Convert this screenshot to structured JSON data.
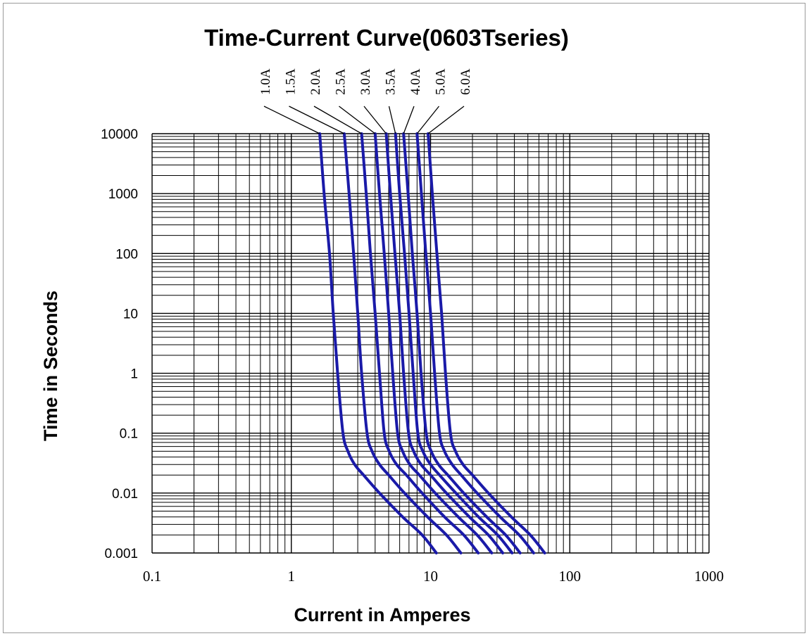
{
  "chart_data": {
    "type": "line",
    "title": "Time-Current Curve(0603Tseries)",
    "xlabel": "Current in Amperes",
    "ylabel": "Time in Seconds",
    "x_scale": "log",
    "y_scale": "log",
    "xlim": [
      0.1,
      1000
    ],
    "ylim": [
      0.001,
      10000
    ],
    "grid": true,
    "x_ticks": [
      "0.1",
      "1",
      "10",
      "100",
      "1000"
    ],
    "y_ticks": [
      "0.001",
      "0.01",
      "0.1",
      "1",
      "10",
      "100",
      "1000",
      "10000"
    ],
    "line_color": "#1a1aa8",
    "series": [
      {
        "name": "1.0A",
        "points": [
          [
            1.6,
            10000
          ],
          [
            1.72,
            1000
          ],
          [
            1.88,
            100
          ],
          [
            2.0,
            10
          ],
          [
            2.15,
            1
          ],
          [
            2.35,
            0.1
          ],
          [
            2.55,
            0.05
          ],
          [
            2.85,
            0.03
          ],
          [
            3.3,
            0.02
          ],
          [
            4.3,
            0.01
          ],
          [
            6.3,
            0.004
          ],
          [
            8.7,
            0.002
          ],
          [
            11.0,
            0.001
          ]
        ]
      },
      {
        "name": "1.5A",
        "points": [
          [
            2.4,
            10000
          ],
          [
            2.6,
            1000
          ],
          [
            2.8,
            100
          ],
          [
            3.0,
            10
          ],
          [
            3.2,
            1
          ],
          [
            3.5,
            0.1
          ],
          [
            3.8,
            0.05
          ],
          [
            4.3,
            0.03
          ],
          [
            5.0,
            0.02
          ],
          [
            6.5,
            0.01
          ],
          [
            9.5,
            0.004
          ],
          [
            13.0,
            0.002
          ],
          [
            16.5,
            0.001
          ]
        ]
      },
      {
        "name": "2.0A",
        "points": [
          [
            3.2,
            10000
          ],
          [
            3.45,
            1000
          ],
          [
            3.7,
            100
          ],
          [
            4.0,
            10
          ],
          [
            4.3,
            1
          ],
          [
            4.65,
            0.1
          ],
          [
            5.05,
            0.05
          ],
          [
            5.7,
            0.03
          ],
          [
            6.7,
            0.02
          ],
          [
            8.7,
            0.01
          ],
          [
            12.6,
            0.004
          ],
          [
            17.3,
            0.002
          ],
          [
            22.0,
            0.001
          ]
        ]
      },
      {
        "name": "2.5A",
        "points": [
          [
            4.0,
            10000
          ],
          [
            4.3,
            1000
          ],
          [
            4.65,
            100
          ],
          [
            5.0,
            10
          ],
          [
            5.35,
            1
          ],
          [
            5.8,
            0.1
          ],
          [
            6.3,
            0.05
          ],
          [
            7.1,
            0.03
          ],
          [
            8.3,
            0.02
          ],
          [
            10.8,
            0.01
          ],
          [
            15.8,
            0.004
          ],
          [
            21.6,
            0.002
          ],
          [
            27.5,
            0.001
          ]
        ]
      },
      {
        "name": "3.0A",
        "points": [
          [
            4.8,
            10000
          ],
          [
            5.15,
            1000
          ],
          [
            5.55,
            100
          ],
          [
            6.0,
            10
          ],
          [
            6.4,
            1
          ],
          [
            6.95,
            0.1
          ],
          [
            7.55,
            0.05
          ],
          [
            8.55,
            0.03
          ],
          [
            10.0,
            0.02
          ],
          [
            13.0,
            0.01
          ],
          [
            19.0,
            0.004
          ],
          [
            26.0,
            0.002
          ],
          [
            33.0,
            0.001
          ]
        ]
      },
      {
        "name": "3.5A",
        "points": [
          [
            5.6,
            10000
          ],
          [
            6.0,
            1000
          ],
          [
            6.5,
            100
          ],
          [
            7.0,
            10
          ],
          [
            7.5,
            1
          ],
          [
            8.1,
            0.1
          ],
          [
            8.8,
            0.05
          ],
          [
            10.0,
            0.03
          ],
          [
            11.6,
            0.02
          ],
          [
            15.2,
            0.01
          ],
          [
            22.1,
            0.004
          ],
          [
            30.3,
            0.002
          ],
          [
            38.5,
            0.001
          ]
        ]
      },
      {
        "name": "4.0A",
        "points": [
          [
            6.4,
            10000
          ],
          [
            6.9,
            1000
          ],
          [
            7.4,
            100
          ],
          [
            8.0,
            10
          ],
          [
            8.55,
            1
          ],
          [
            9.3,
            0.1
          ],
          [
            10.1,
            0.05
          ],
          [
            11.4,
            0.03
          ],
          [
            13.3,
            0.02
          ],
          [
            17.3,
            0.01
          ],
          [
            25.3,
            0.004
          ],
          [
            34.6,
            0.002
          ],
          [
            44.0,
            0.001
          ]
        ]
      },
      {
        "name": "5.0A",
        "points": [
          [
            8.0,
            10000
          ],
          [
            8.6,
            1000
          ],
          [
            9.25,
            100
          ],
          [
            10.0,
            10
          ],
          [
            10.7,
            1
          ],
          [
            11.6,
            0.1
          ],
          [
            12.6,
            0.05
          ],
          [
            14.3,
            0.03
          ],
          [
            16.6,
            0.02
          ],
          [
            21.6,
            0.01
          ],
          [
            31.6,
            0.004
          ],
          [
            43.3,
            0.002
          ],
          [
            55.0,
            0.001
          ]
        ]
      },
      {
        "name": "6.0A",
        "points": [
          [
            9.6,
            10000
          ],
          [
            10.3,
            1000
          ],
          [
            11.1,
            100
          ],
          [
            12.0,
            10
          ],
          [
            12.8,
            1
          ],
          [
            13.9,
            0.1
          ],
          [
            15.1,
            0.05
          ],
          [
            17.1,
            0.03
          ],
          [
            20.0,
            0.02
          ],
          [
            26.0,
            0.01
          ],
          [
            38.0,
            0.004
          ],
          [
            52.0,
            0.002
          ],
          [
            66.0,
            0.001
          ]
        ]
      }
    ]
  }
}
